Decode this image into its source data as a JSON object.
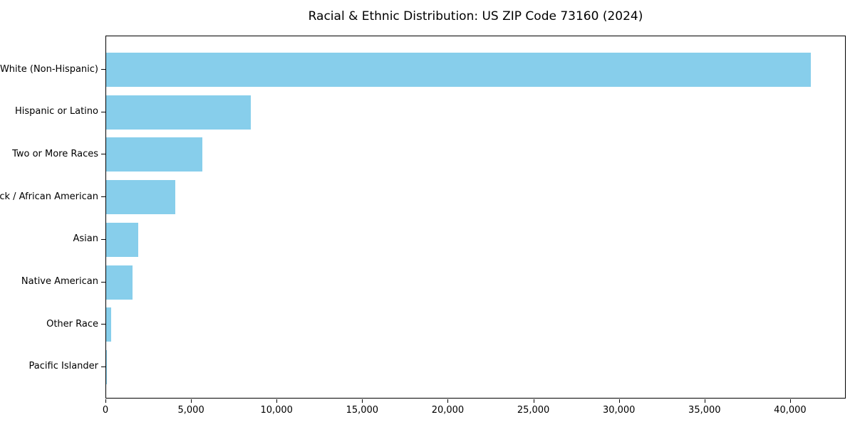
{
  "chart_data": {
    "type": "bar",
    "orientation": "horizontal",
    "title": "Racial & Ethnic Distribution: US ZIP Code 73160 (2024)",
    "xlabel": "",
    "ylabel": "",
    "categories": [
      "White (Non-Hispanic)",
      "Hispanic or Latino",
      "Two or More Races",
      "Black / African American",
      "Asian",
      "Native American",
      "Other Race",
      "Pacific Islander"
    ],
    "values": [
      41150,
      8460,
      5620,
      4020,
      1870,
      1550,
      290,
      30
    ],
    "xlim": [
      0,
      43250
    ],
    "x_ticks": [
      {
        "value": 0,
        "label": "0"
      },
      {
        "value": 5000,
        "label": "5,000"
      },
      {
        "value": 10000,
        "label": "10,000"
      },
      {
        "value": 15000,
        "label": "15,000"
      },
      {
        "value": 20000,
        "label": "20,000"
      },
      {
        "value": 25000,
        "label": "25,000"
      },
      {
        "value": 30000,
        "label": "30,000"
      },
      {
        "value": 35000,
        "label": "35,000"
      },
      {
        "value": 40000,
        "label": "40,000"
      }
    ],
    "bar_color": "#87CEEB",
    "background_color": "#FFFFFF",
    "axis_color": "#000000",
    "grid": false,
    "legend_position": "none"
  }
}
